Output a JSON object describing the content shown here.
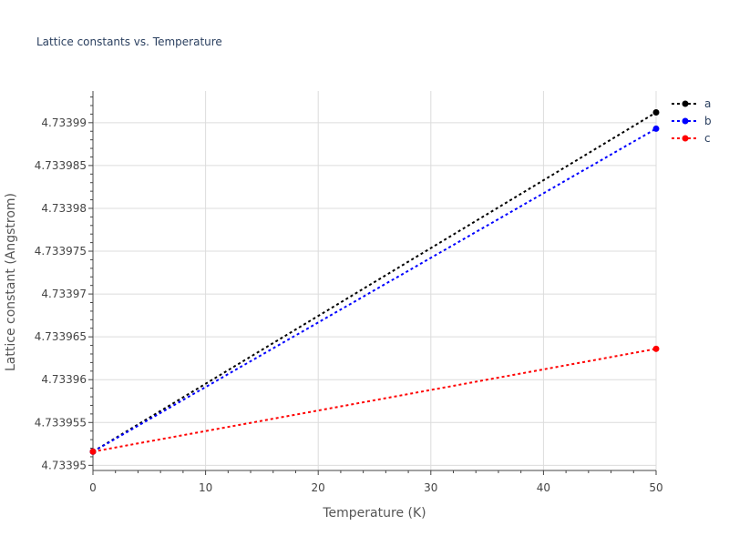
{
  "chart_data": {
    "type": "line",
    "title": "Lattice constants vs. Temperature",
    "xlabel": "Temperature (K)",
    "ylabel": "Lattice constant (Angstrom)",
    "xlim": [
      0,
      50
    ],
    "ylim": [
      4.7339494,
      4.7339937
    ],
    "x_ticks": [
      0,
      10,
      20,
      30,
      40,
      50
    ],
    "x_tick_labels": [
      "0",
      "10",
      "20",
      "30",
      "40",
      "50"
    ],
    "y_ticks": [
      4.73395,
      4.733955,
      4.73396,
      4.733965,
      4.73397,
      4.733975,
      4.73398,
      4.733985,
      4.73399
    ],
    "y_tick_labels": [
      "4.73395",
      "4.733955",
      "4.73396",
      "4.733965",
      "4.73397",
      "4.733975",
      "4.73398",
      "4.733985",
      "4.73399"
    ],
    "grid": true,
    "legend_position": "top-right",
    "series": [
      {
        "name": "a",
        "color": "#000000",
        "x": [
          0,
          50
        ],
        "y": [
          4.7339516,
          4.7339912
        ]
      },
      {
        "name": "b",
        "color": "#0000ff",
        "x": [
          0,
          50
        ],
        "y": [
          4.7339516,
          4.7339893
        ]
      },
      {
        "name": "c",
        "color": "#ff0000",
        "x": [
          0,
          50
        ],
        "y": [
          4.7339516,
          4.7339636
        ]
      }
    ]
  }
}
